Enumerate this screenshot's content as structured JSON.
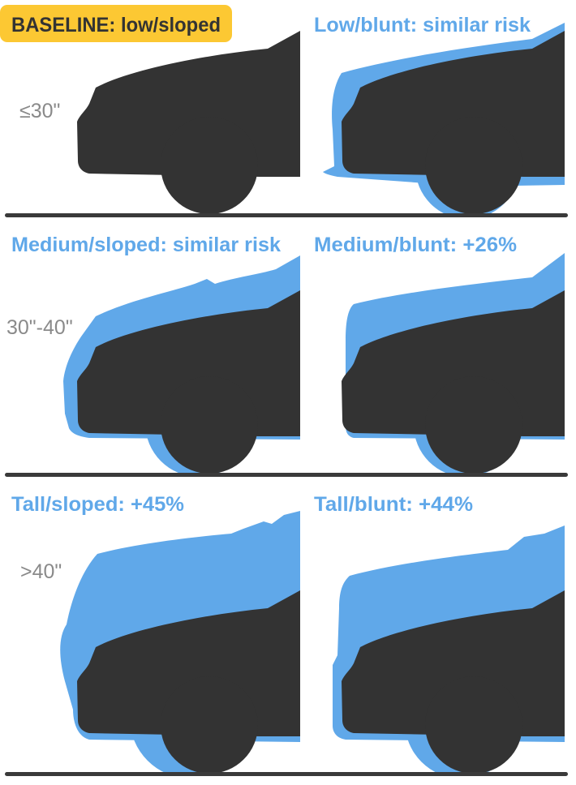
{
  "colors": {
    "dark_car": "#333333",
    "comparison_car": "#60a8e9",
    "badge": "#fcc833",
    "title_blue": "#60a8e9",
    "height_label": "#8a8a8a",
    "ground": "#3a3a3a"
  },
  "panels": [
    {
      "title": "BASELINE: low/sloped",
      "height_label": "≤30\""
    },
    {
      "title": "Low/blunt: similar risk"
    },
    {
      "title": "Medium/sloped: similar risk",
      "height_label": "30\"-40\""
    },
    {
      "title": "Medium/blunt: +26%"
    },
    {
      "title": "Tall/sloped: +45%",
      "height_label": ">40\""
    },
    {
      "title": "Tall/blunt: +44%"
    }
  ]
}
